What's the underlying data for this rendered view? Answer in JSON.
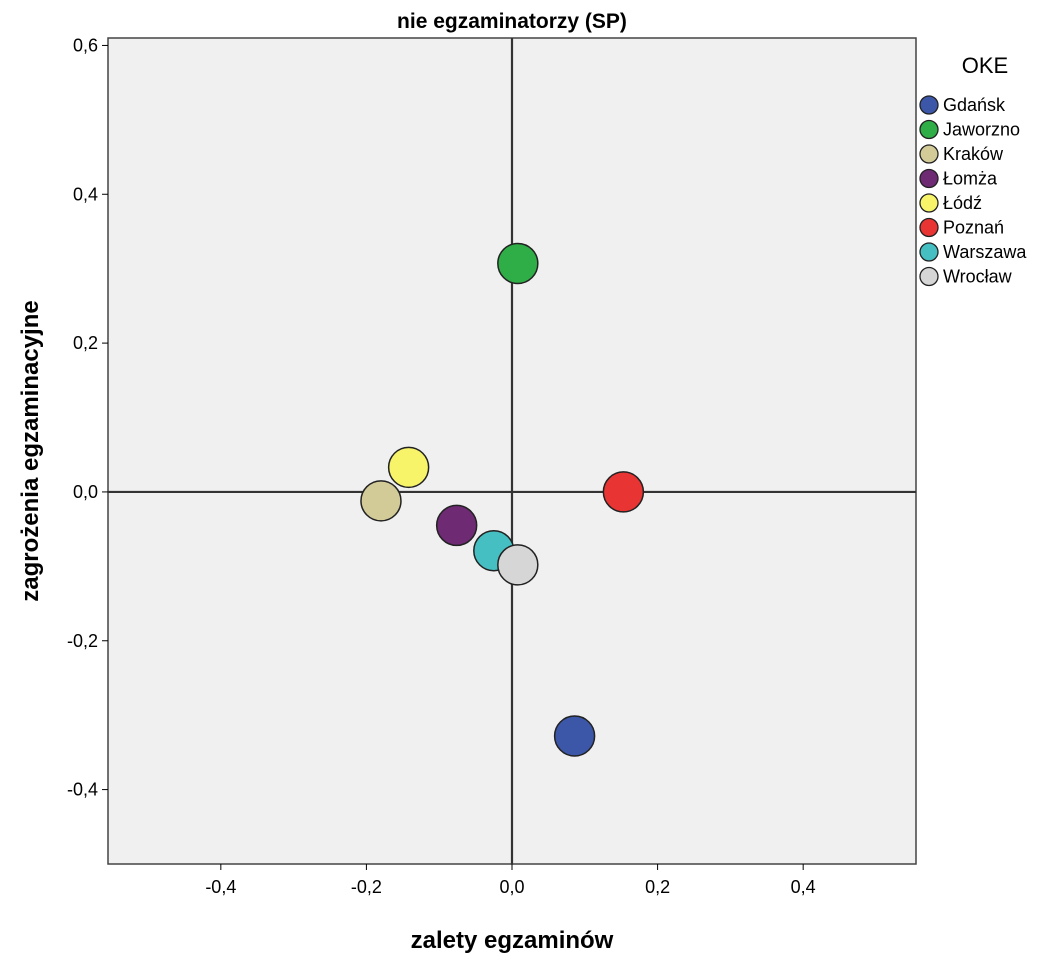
{
  "chart_data": {
    "type": "scatter",
    "title": "nie egzaminatorzy (SP)",
    "xlabel": "zalety egzaminów",
    "ylabel": "zagrożenia egzaminacyjne",
    "xlim": [
      -0.555,
      0.555
    ],
    "ylim": [
      -0.5,
      0.61
    ],
    "x_ticks": [
      -0.4,
      -0.2,
      0.0,
      0.2,
      0.4
    ],
    "x_tick_labels": [
      "-0,4",
      "-0,2",
      "0,0",
      "0,2",
      "0,4"
    ],
    "y_ticks": [
      -0.4,
      -0.2,
      0.0,
      0.2,
      0.4,
      0.6
    ],
    "y_tick_labels": [
      "-0,4",
      "-0,2",
      "0,0",
      "0,2",
      "0,4",
      "0,6"
    ],
    "reference_lines": {
      "x": 0.0,
      "y": 0.0
    },
    "grid": false,
    "legend": {
      "title": "OKE",
      "placement": "right"
    },
    "series": [
      {
        "name": "Gdańsk",
        "x": 0.086,
        "y": -0.328,
        "color": "#3c56a8"
      },
      {
        "name": "Jaworzno",
        "x": 0.008,
        "y": 0.307,
        "color": "#2fae47"
      },
      {
        "name": "Kraków",
        "x": -0.18,
        "y": -0.012,
        "color": "#d2cb98"
      },
      {
        "name": "Łomża",
        "x": -0.076,
        "y": -0.045,
        "color": "#6f2a74"
      },
      {
        "name": "Łódź",
        "x": -0.142,
        "y": 0.033,
        "color": "#f8f46a"
      },
      {
        "name": "Poznań",
        "x": 0.153,
        "y": 0.0,
        "color": "#e93434"
      },
      {
        "name": "Warszawa",
        "x": -0.025,
        "y": -0.079,
        "color": "#45bfc2"
      },
      {
        "name": "Wrocław",
        "x": 0.008,
        "y": -0.098,
        "color": "#d6d6d6"
      }
    ]
  }
}
